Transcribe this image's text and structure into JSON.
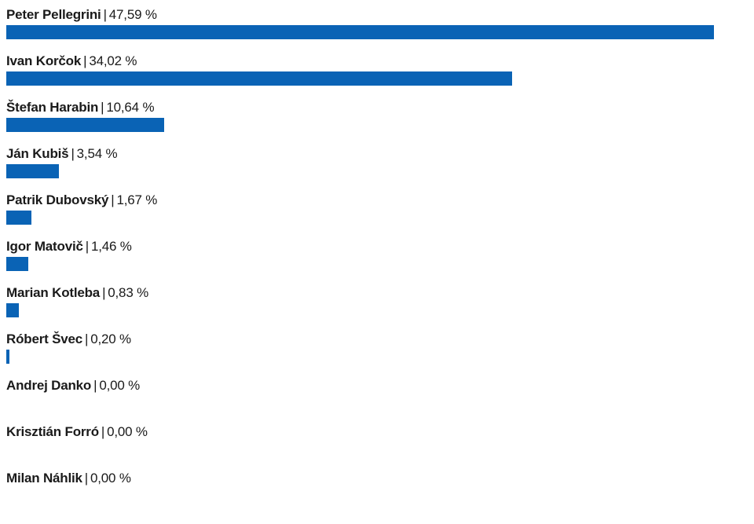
{
  "chart_data": {
    "type": "bar",
    "orientation": "horizontal",
    "categories": [
      "Peter Pellegrini",
      "Ivan Korčok",
      "Štefan Harabin",
      "Ján Kubiš",
      "Patrik Dubovský",
      "Igor Matovič",
      "Marian Kotleba",
      "Róbert Švec",
      "Andrej Danko",
      "Krisztián Forró",
      "Milan Náhlik"
    ],
    "values": [
      47.59,
      34.02,
      10.64,
      3.54,
      1.67,
      1.46,
      0.83,
      0.2,
      0.0,
      0.0,
      0.0
    ],
    "value_labels": [
      "47,59 %",
      "34,02 %",
      "10,64 %",
      "3,54 %",
      "1,67 %",
      "1,46 %",
      "0,83 %",
      "0,20 %",
      "0,00 %",
      "0,00 %",
      "0,00 %"
    ],
    "separator": "|",
    "bar_color": "#0a63b5",
    "grid": false
  }
}
